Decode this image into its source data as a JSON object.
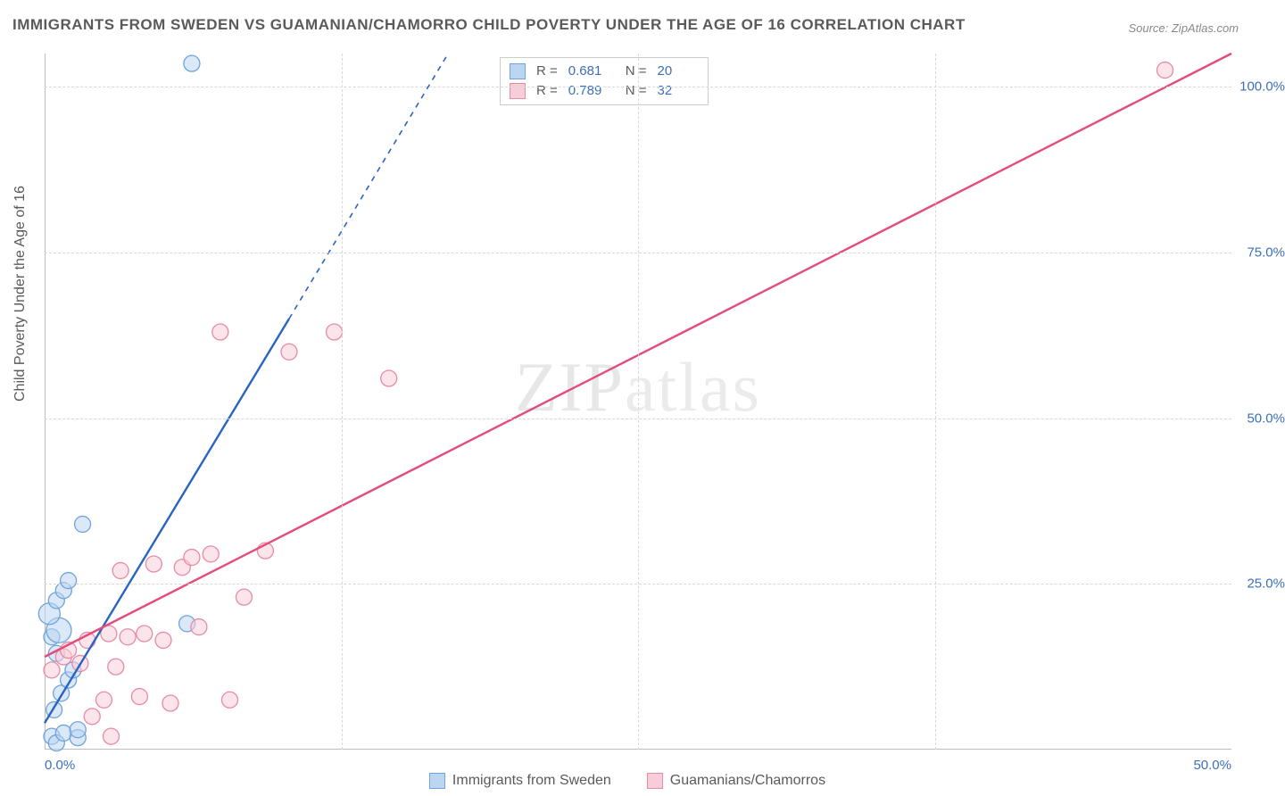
{
  "title": "IMMIGRANTS FROM SWEDEN VS GUAMANIAN/CHAMORRO CHILD POVERTY UNDER THE AGE OF 16 CORRELATION CHART",
  "source": "Source: ZipAtlas.com",
  "ylabel": "Child Poverty Under the Age of 16",
  "watermark_a": "ZIP",
  "watermark_b": "atlas",
  "plot": {
    "x_min": 0,
    "x_max": 50,
    "y_min": 0,
    "y_max": 105,
    "grid_color": "#d8d8d8",
    "axis_color": "#bcbcbc",
    "tick_color": "#3b6fb6",
    "x_ticks": [
      {
        "v": 0,
        "label": "0.0%"
      },
      {
        "v": 50,
        "label": "50.0%"
      }
    ],
    "x_gridlines": [
      12.5,
      25,
      37.5
    ],
    "y_ticks": [
      {
        "v": 25,
        "label": "25.0%"
      },
      {
        "v": 50,
        "label": "50.0%"
      },
      {
        "v": 75,
        "label": "75.0%"
      },
      {
        "v": 100,
        "label": "100.0%"
      }
    ]
  },
  "series": [
    {
      "key": "sweden",
      "label": "Immigrants from Sweden",
      "color_fill": "#bcd6f2",
      "color_stroke": "#6fa3db",
      "line_color": "#2a64c0",
      "r_value": "0.681",
      "n_value": "20",
      "regression": {
        "x1": 0,
        "y1": 4,
        "x2": 10.3,
        "y2": 65,
        "dash_to_x": 17,
        "dash_to_y": 105
      },
      "points": [
        {
          "x": 0.3,
          "y": 2.0,
          "r": 9
        },
        {
          "x": 0.5,
          "y": 1.0,
          "r": 9
        },
        {
          "x": 0.8,
          "y": 2.5,
          "r": 9
        },
        {
          "x": 1.4,
          "y": 1.8,
          "r": 9
        },
        {
          "x": 1.4,
          "y": 3.0,
          "r": 9
        },
        {
          "x": 0.4,
          "y": 6.0,
          "r": 9
        },
        {
          "x": 0.7,
          "y": 8.5,
          "r": 9
        },
        {
          "x": 1.0,
          "y": 10.5,
          "r": 9
        },
        {
          "x": 1.2,
          "y": 12.0,
          "r": 9
        },
        {
          "x": 0.5,
          "y": 14.5,
          "r": 9
        },
        {
          "x": 0.3,
          "y": 17.0,
          "r": 9
        },
        {
          "x": 0.6,
          "y": 18.0,
          "r": 14
        },
        {
          "x": 0.2,
          "y": 20.5,
          "r": 12
        },
        {
          "x": 0.5,
          "y": 22.5,
          "r": 9
        },
        {
          "x": 0.8,
          "y": 24.0,
          "r": 9
        },
        {
          "x": 1.0,
          "y": 25.5,
          "r": 9
        },
        {
          "x": 1.6,
          "y": 34.0,
          "r": 9
        },
        {
          "x": 6.0,
          "y": 19.0,
          "r": 9
        },
        {
          "x": 6.2,
          "y": 103.5,
          "r": 9
        }
      ]
    },
    {
      "key": "guam",
      "label": "Guamanians/Chamorros",
      "color_fill": "#f7cdd9",
      "color_stroke": "#e88aa6",
      "line_color": "#e54b7a",
      "r_value": "0.789",
      "n_value": "32",
      "regression": {
        "x1": 0,
        "y1": 14,
        "x2": 50,
        "y2": 105
      },
      "points": [
        {
          "x": 0.3,
          "y": 12.0,
          "r": 9
        },
        {
          "x": 0.8,
          "y": 14.0,
          "r": 9
        },
        {
          "x": 1.0,
          "y": 15.0,
          "r": 9
        },
        {
          "x": 1.5,
          "y": 13.0,
          "r": 9
        },
        {
          "x": 1.8,
          "y": 16.5,
          "r": 9
        },
        {
          "x": 2.0,
          "y": 5.0,
          "r": 9
        },
        {
          "x": 2.5,
          "y": 7.5,
          "r": 9
        },
        {
          "x": 2.7,
          "y": 17.5,
          "r": 9
        },
        {
          "x": 2.8,
          "y": 2.0,
          "r": 9
        },
        {
          "x": 3.0,
          "y": 12.5,
          "r": 9
        },
        {
          "x": 3.2,
          "y": 27.0,
          "r": 9
        },
        {
          "x": 3.5,
          "y": 17.0,
          "r": 9
        },
        {
          "x": 4.0,
          "y": 8.0,
          "r": 9
        },
        {
          "x": 4.2,
          "y": 17.5,
          "r": 9
        },
        {
          "x": 4.6,
          "y": 28.0,
          "r": 9
        },
        {
          "x": 5.0,
          "y": 16.5,
          "r": 9
        },
        {
          "x": 5.3,
          "y": 7.0,
          "r": 9
        },
        {
          "x": 5.8,
          "y": 27.5,
          "r": 9
        },
        {
          "x": 6.2,
          "y": 29.0,
          "r": 9
        },
        {
          "x": 6.5,
          "y": 18.5,
          "r": 9
        },
        {
          "x": 7.0,
          "y": 29.5,
          "r": 9
        },
        {
          "x": 7.4,
          "y": 63.0,
          "r": 9
        },
        {
          "x": 7.8,
          "y": 7.5,
          "r": 9
        },
        {
          "x": 8.4,
          "y": 23.0,
          "r": 9
        },
        {
          "x": 9.3,
          "y": 30.0,
          "r": 9
        },
        {
          "x": 10.3,
          "y": 60.0,
          "r": 9
        },
        {
          "x": 12.2,
          "y": 63.0,
          "r": 9
        },
        {
          "x": 14.5,
          "y": 56.0,
          "r": 9
        },
        {
          "x": 47.2,
          "y": 102.5,
          "r": 9
        }
      ]
    }
  ]
}
